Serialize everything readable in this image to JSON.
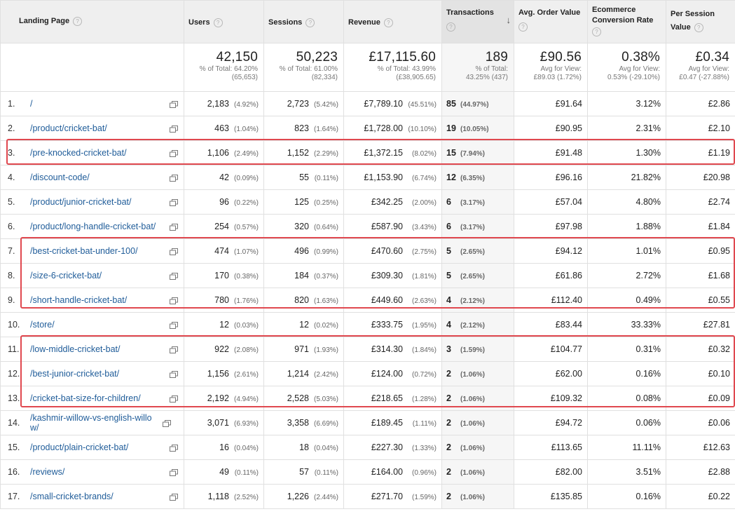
{
  "headers": {
    "landing_page": "Landing Page",
    "users": "Users",
    "sessions": "Sessions",
    "revenue": "Revenue",
    "transactions": "Transactions",
    "avg_order_value": "Avg. Order Value",
    "ecommerce_conversion_rate": "Ecommerce Conversion Rate",
    "per_session_value": "Per Session Value",
    "help_glyph": "?",
    "sort_glyph": "↓"
  },
  "totals": {
    "users": {
      "value": "42,150",
      "line1": "% of Total: 64.20%",
      "line2": "(65,653)"
    },
    "sessions": {
      "value": "50,223",
      "line1": "% of Total: 61.00%",
      "line2": "(82,334)"
    },
    "revenue": {
      "value": "£17,115.60",
      "line1": "% of Total: 43.99%",
      "line2": "(£38,905.65)"
    },
    "transactions": {
      "value": "189",
      "line1": "% of Total:",
      "line2": "43.25% (437)"
    },
    "avg_order_value": {
      "value": "£90.56",
      "line1": "Avg for View:",
      "line2": "£89.03 (1.72%)"
    },
    "conversion_rate": {
      "value": "0.38%",
      "line1": "Avg for View:",
      "line2": "0.53% (-29.10%)"
    },
    "per_session_value": {
      "value": "£0.34",
      "line1": "Avg for View:",
      "line2": "£0.47 (-27.88%)"
    }
  },
  "rows": [
    {
      "rank": "1.",
      "page": "/",
      "users": "2,183",
      "users_pct": "(4.92%)",
      "sessions": "2,723",
      "sessions_pct": "(5.42%)",
      "revenue": "£7,789.10",
      "revenue_pct": "(45.51%)",
      "transactions": "85",
      "transactions_pct": "(44.97%)",
      "aov": "£91.64",
      "conv": "3.12%",
      "psv": "£2.86"
    },
    {
      "rank": "2.",
      "page": "/product/cricket-bat/",
      "users": "463",
      "users_pct": "(1.04%)",
      "sessions": "823",
      "sessions_pct": "(1.64%)",
      "revenue": "£1,728.00",
      "revenue_pct": "(10.10%)",
      "transactions": "19",
      "transactions_pct": "(10.05%)",
      "aov": "£90.95",
      "conv": "2.31%",
      "psv": "£2.10"
    },
    {
      "rank": "3.",
      "page": "/pre-knocked-cricket-bat/",
      "users": "1,106",
      "users_pct": "(2.49%)",
      "sessions": "1,152",
      "sessions_pct": "(2.29%)",
      "revenue": "£1,372.15",
      "revenue_pct": "(8.02%)",
      "transactions": "15",
      "transactions_pct": "(7.94%)",
      "aov": "£91.48",
      "conv": "1.30%",
      "psv": "£1.19"
    },
    {
      "rank": "4.",
      "page": "/discount-code/",
      "users": "42",
      "users_pct": "(0.09%)",
      "sessions": "55",
      "sessions_pct": "(0.11%)",
      "revenue": "£1,153.90",
      "revenue_pct": "(6.74%)",
      "transactions": "12",
      "transactions_pct": "(6.35%)",
      "aov": "£96.16",
      "conv": "21.82%",
      "psv": "£20.98"
    },
    {
      "rank": "5.",
      "page": "/product/junior-cricket-bat/",
      "users": "96",
      "users_pct": "(0.22%)",
      "sessions": "125",
      "sessions_pct": "(0.25%)",
      "revenue": "£342.25",
      "revenue_pct": "(2.00%)",
      "transactions": "6",
      "transactions_pct": "(3.17%)",
      "aov": "£57.04",
      "conv": "4.80%",
      "psv": "£2.74"
    },
    {
      "rank": "6.",
      "page": "/product/long-handle-cricket-bat/",
      "users": "254",
      "users_pct": "(0.57%)",
      "sessions": "320",
      "sessions_pct": "(0.64%)",
      "revenue": "£587.90",
      "revenue_pct": "(3.43%)",
      "transactions": "6",
      "transactions_pct": "(3.17%)",
      "aov": "£97.98",
      "conv": "1.88%",
      "psv": "£1.84"
    },
    {
      "rank": "7.",
      "page": "/best-cricket-bat-under-100/",
      "users": "474",
      "users_pct": "(1.07%)",
      "sessions": "496",
      "sessions_pct": "(0.99%)",
      "revenue": "£470.60",
      "revenue_pct": "(2.75%)",
      "transactions": "5",
      "transactions_pct": "(2.65%)",
      "aov": "£94.12",
      "conv": "1.01%",
      "psv": "£0.95"
    },
    {
      "rank": "8.",
      "page": "/size-6-cricket-bat/",
      "users": "170",
      "users_pct": "(0.38%)",
      "sessions": "184",
      "sessions_pct": "(0.37%)",
      "revenue": "£309.30",
      "revenue_pct": "(1.81%)",
      "transactions": "5",
      "transactions_pct": "(2.65%)",
      "aov": "£61.86",
      "conv": "2.72%",
      "psv": "£1.68"
    },
    {
      "rank": "9.",
      "page": "/short-handle-cricket-bat/",
      "users": "780",
      "users_pct": "(1.76%)",
      "sessions": "820",
      "sessions_pct": "(1.63%)",
      "revenue": "£449.60",
      "revenue_pct": "(2.63%)",
      "transactions": "4",
      "transactions_pct": "(2.12%)",
      "aov": "£112.40",
      "conv": "0.49%",
      "psv": "£0.55"
    },
    {
      "rank": "10.",
      "page": "/store/",
      "users": "12",
      "users_pct": "(0.03%)",
      "sessions": "12",
      "sessions_pct": "(0.02%)",
      "revenue": "£333.75",
      "revenue_pct": "(1.95%)",
      "transactions": "4",
      "transactions_pct": "(2.12%)",
      "aov": "£83.44",
      "conv": "33.33%",
      "psv": "£27.81"
    },
    {
      "rank": "11.",
      "page": "/low-middle-cricket-bat/",
      "users": "922",
      "users_pct": "(2.08%)",
      "sessions": "971",
      "sessions_pct": "(1.93%)",
      "revenue": "£314.30",
      "revenue_pct": "(1.84%)",
      "transactions": "3",
      "transactions_pct": "(1.59%)",
      "aov": "£104.77",
      "conv": "0.31%",
      "psv": "£0.32"
    },
    {
      "rank": "12.",
      "page": "/best-junior-cricket-bat/",
      "users": "1,156",
      "users_pct": "(2.61%)",
      "sessions": "1,214",
      "sessions_pct": "(2.42%)",
      "revenue": "£124.00",
      "revenue_pct": "(0.72%)",
      "transactions": "2",
      "transactions_pct": "(1.06%)",
      "aov": "£62.00",
      "conv": "0.16%",
      "psv": "£0.10"
    },
    {
      "rank": "13.",
      "page": "/cricket-bat-size-for-children/",
      "users": "2,192",
      "users_pct": "(4.94%)",
      "sessions": "2,528",
      "sessions_pct": "(5.03%)",
      "revenue": "£218.65",
      "revenue_pct": "(1.28%)",
      "transactions": "2",
      "transactions_pct": "(1.06%)",
      "aov": "£109.32",
      "conv": "0.08%",
      "psv": "£0.09"
    },
    {
      "rank": "14.",
      "page": "/kashmir-willow-vs-english-willow/",
      "users": "3,071",
      "users_pct": "(6.93%)",
      "sessions": "3,358",
      "sessions_pct": "(6.69%)",
      "revenue": "£189.45",
      "revenue_pct": "(1.11%)",
      "transactions": "2",
      "transactions_pct": "(1.06%)",
      "aov": "£94.72",
      "conv": "0.06%",
      "psv": "£0.06"
    },
    {
      "rank": "15.",
      "page": "/product/plain-cricket-bat/",
      "users": "16",
      "users_pct": "(0.04%)",
      "sessions": "18",
      "sessions_pct": "(0.04%)",
      "revenue": "£227.30",
      "revenue_pct": "(1.33%)",
      "transactions": "2",
      "transactions_pct": "(1.06%)",
      "aov": "£113.65",
      "conv": "11.11%",
      "psv": "£12.63"
    },
    {
      "rank": "16.",
      "page": "/reviews/",
      "users": "49",
      "users_pct": "(0.11%)",
      "sessions": "57",
      "sessions_pct": "(0.11%)",
      "revenue": "£164.00",
      "revenue_pct": "(0.96%)",
      "transactions": "2",
      "transactions_pct": "(1.06%)",
      "aov": "£82.00",
      "conv": "3.51%",
      "psv": "£2.88"
    },
    {
      "rank": "17.",
      "page": "/small-cricket-brands/",
      "users": "1,118",
      "users_pct": "(2.52%)",
      "sessions": "1,226",
      "sessions_pct": "(2.44%)",
      "revenue": "£271.70",
      "revenue_pct": "(1.59%)",
      "transactions": "2",
      "transactions_pct": "(1.06%)",
      "aov": "£135.85",
      "conv": "0.16%",
      "psv": "£0.22"
    }
  ],
  "icons": {
    "open_page": "open-in-new-window-icon",
    "help": "help-icon",
    "sort": "sort-descending-icon"
  },
  "colors": {
    "link": "#1f5c99",
    "highlight": "#e0484f",
    "header_bg": "#efefef"
  }
}
